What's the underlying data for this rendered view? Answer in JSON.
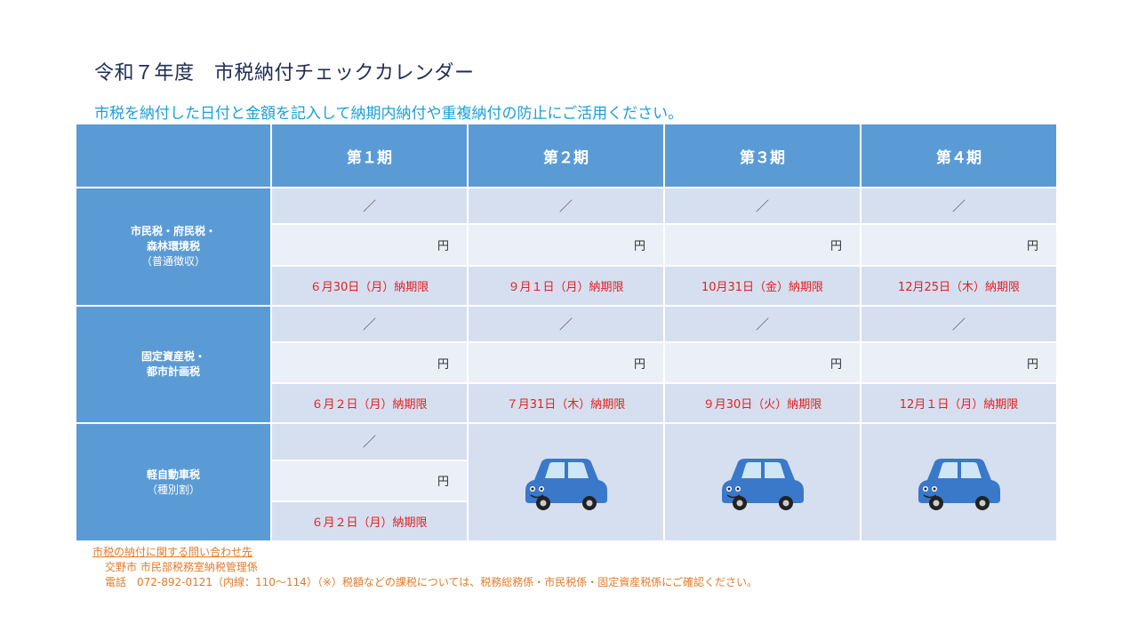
{
  "header": {
    "title": "令和７年度　市税納付チェックカレンダー",
    "subtitle": "市税を納付した日付と金額を記入して納期内納付や重複納付の防止にご活用ください。"
  },
  "periods": [
    "第１期",
    "第２期",
    "第３期",
    "第４期"
  ],
  "symbols": {
    "date_slash": "／",
    "yen": "円"
  },
  "taxes": [
    {
      "name_lines": [
        "市民税・府民税・",
        "森林環境税"
      ],
      "note": "（普通徴収）",
      "due_dates": [
        "６月30日（月）納期限",
        "９月１日（月）納期限",
        "10月31日（金）納期限",
        "12月25日（木）納期限"
      ]
    },
    {
      "name_lines": [
        "固定資産税・",
        "都市計画税"
      ],
      "note": "",
      "due_dates": [
        "６月２日（月）納期限",
        "７月31日（木）納期限",
        "９月30日（火）納期限",
        "12月１日（月）納期限"
      ]
    },
    {
      "name_lines": [
        "軽自動車税"
      ],
      "note": "（種別割）",
      "due_dates": [
        "６月２日（月）納期限"
      ]
    }
  ],
  "contact": {
    "link_text": "市税の納付に関する問い合わせ先",
    "office": "交野市 市民部税務室納税管理係",
    "phone_line": "電話　072-892-0121（内線：110～114）（※）税額などの課税については、税務総務係・市民税係・固定資産税係にご確認ください。"
  },
  "colors": {
    "header_blue": "#5b9bd5",
    "cell_light": "#d6dff0",
    "cell_lighter": "#eaeff8",
    "due_red": "#e02020",
    "subtitle_cyan": "#1aa0d8",
    "contact_orange": "#e07b2a",
    "car_blue": "#3a78c9"
  },
  "icons": {
    "car": "car-illustration"
  }
}
